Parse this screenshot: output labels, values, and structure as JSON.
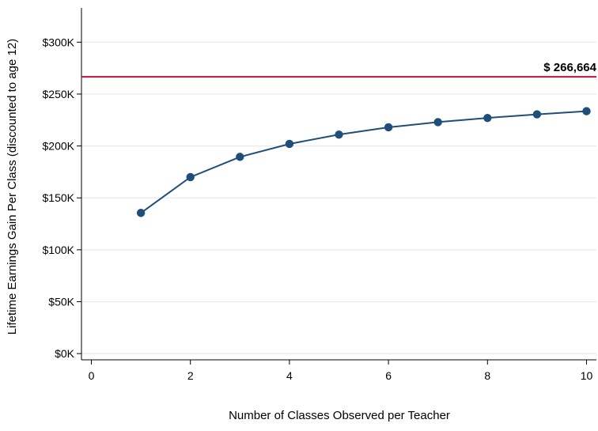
{
  "chart_data": {
    "type": "line",
    "title": "",
    "xlabel": "Number of Classes Observed per Teacher",
    "ylabel": "Lifetime Earnings Gain Per Class (discounted to age 12)",
    "xlim": [
      -0.2,
      10.2
    ],
    "ylim": [
      -6000,
      333000
    ],
    "x_ticks": [
      0,
      2,
      4,
      6,
      8,
      10
    ],
    "x_tick_labels": [
      "0",
      "2",
      "4",
      "6",
      "8",
      "10"
    ],
    "y_ticks": [
      0,
      50000,
      100000,
      150000,
      200000,
      250000,
      300000
    ],
    "y_tick_labels": [
      "$0K",
      "$50K",
      "$100K",
      "$150K",
      "$200K",
      "$250K",
      "$300K"
    ],
    "grid": true,
    "series": [
      {
        "x": [
          1,
          2,
          3,
          4,
          5,
          6,
          7,
          8,
          9,
          10
        ],
        "values": [
          135500,
          170000,
          189500,
          202000,
          211000,
          218000,
          223000,
          227000,
          230500,
          233500
        ],
        "color": "#1f4e79"
      }
    ],
    "reference_line": {
      "value": 266664,
      "label": "$ 266,664",
      "color": "#c0103c"
    }
  }
}
